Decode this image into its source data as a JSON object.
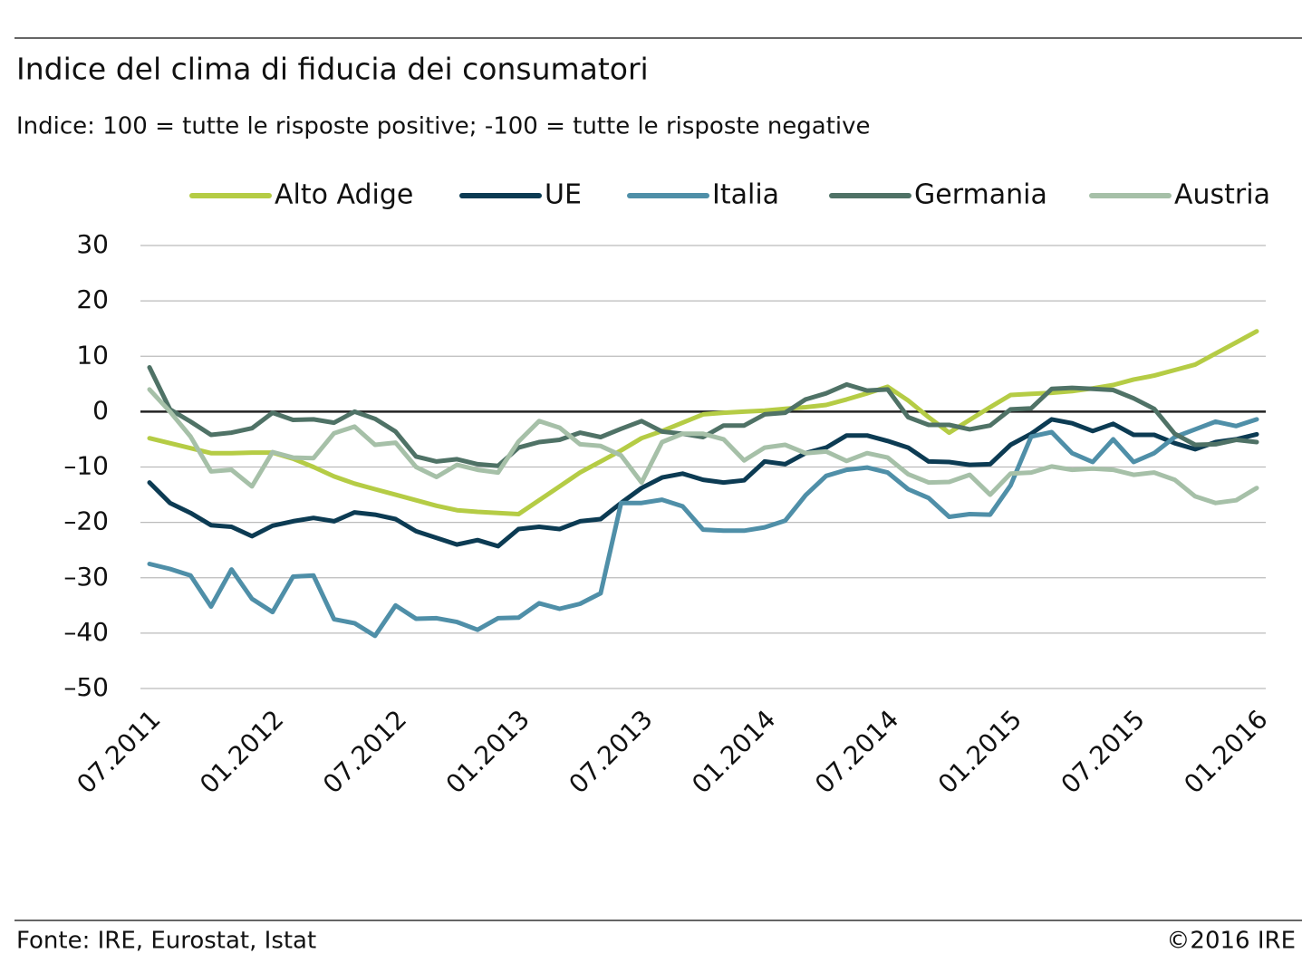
{
  "chart_data": {
    "type": "line",
    "title": "Indice del clima di fiducia dei consumatori",
    "subtitle": "Indice: 100 = tutte le risposte positive; -100 =  tutte le risposte negative",
    "source": "Fonte:  IRE, Eurostat, Istat",
    "copyright": "©2016 IRE",
    "categories": [
      "07.2011",
      null,
      null,
      null,
      null,
      null,
      "01.2012",
      null,
      null,
      null,
      null,
      null,
      "07.2012",
      null,
      null,
      null,
      null,
      null,
      "01.2013",
      null,
      null,
      null,
      null,
      null,
      "07.2013",
      null,
      null,
      null,
      null,
      null,
      "01.2014",
      null,
      null,
      null,
      null,
      null,
      "07.2014",
      null,
      null,
      null,
      null,
      null,
      "01.2015",
      null,
      null,
      null,
      null,
      null,
      "07.2015",
      null,
      null,
      null,
      null,
      null,
      "01.2016"
    ],
    "ylim": [
      -50,
      30
    ],
    "yticks": [
      {
        "value": -50,
        "label": "–50"
      },
      {
        "value": -40,
        "label": "–40"
      },
      {
        "value": -30,
        "label": "–30"
      },
      {
        "value": -20,
        "label": "–20"
      },
      {
        "value": -10,
        "label": "–10"
      },
      0,
      10,
      20,
      30
    ],
    "grid": true,
    "legend": "top",
    "series": [
      {
        "name": "Alto Adige",
        "color": "#b5cc45",
        "values": [
          -4.8,
          -5.7,
          -6.6,
          -7.5,
          -7.5,
          -7.4,
          -7.4,
          -8.5,
          -10,
          -11.7,
          -13,
          -14,
          -15,
          -16,
          -17,
          -17.8,
          -18.1,
          -18.3,
          -18.5,
          -16,
          -13.5,
          -11,
          -9,
          -7,
          -4.8,
          -3.5,
          -2,
          -0.5,
          -0.2,
          0,
          0.2,
          0.5,
          0.8,
          1.2,
          2.2,
          3.3,
          4.5,
          2,
          -1,
          -3.8,
          -1.5,
          0.8,
          3,
          3.2,
          3.4,
          3.7,
          4.2,
          4.8,
          5.8,
          6.5,
          7.5,
          8.5,
          10.5,
          12.5,
          14.5
        ]
      },
      {
        "name": "UE",
        "color": "#0c3b53",
        "values": [
          -12.8,
          -16.5,
          -18.3,
          -20.5,
          -20.8,
          -22.5,
          -20.6,
          -19.8,
          -19.2,
          -19.8,
          -18.2,
          -18.6,
          -19.4,
          -21.6,
          -22.8,
          -24,
          -23.2,
          -24.3,
          -21.2,
          -20.8,
          -21.2,
          -19.8,
          -19.4,
          -16.5,
          -13.8,
          -11.9,
          -11.2,
          -12.3,
          -12.8,
          -12.4,
          -9,
          -9.5,
          -7.5,
          -6.5,
          -4.3,
          -4.3,
          -5.3,
          -6.5,
          -9,
          -9.1,
          -9.6,
          -9.5,
          -6,
          -4,
          -1.4,
          -2.1,
          -3.5,
          -2.2,
          -4.2,
          -4.2,
          -5.7,
          -6.8,
          -5.5,
          -5,
          -4.1
        ]
      },
      {
        "name": "Italia",
        "color": "#4f8fa8",
        "values": [
          -27.5,
          -28.4,
          -29.6,
          -35.2,
          -28.5,
          -33.8,
          -36.2,
          -29.8,
          -29.6,
          -37.5,
          -38.2,
          -40.5,
          -35,
          -37.4,
          -37.3,
          -38,
          -39.4,
          -37.3,
          -37.2,
          -34.6,
          -35.6,
          -34.7,
          -32.8,
          -16.5,
          -16.5,
          -15.9,
          -17.1,
          -21.3,
          -21.5,
          -21.5,
          -20.9,
          -19.7,
          -15.1,
          -11.6,
          -10.5,
          -10.1,
          -11,
          -14,
          -15.6,
          -19,
          -18.5,
          -18.6,
          -13.3,
          -4.5,
          -3.7,
          -7.5,
          -9.1,
          -5,
          -9.1,
          -7.5,
          -4.6,
          -3.2,
          -1.8,
          -2.6,
          -1.4
        ]
      },
      {
        "name": "Germania",
        "color": "#4f7266",
        "values": [
          8,
          0.4,
          -1.8,
          -4.2,
          -3.8,
          -3,
          -0.2,
          -1.5,
          -1.4,
          -2,
          0,
          -1.3,
          -3.6,
          -8.1,
          -9,
          -8.6,
          -9.5,
          -9.8,
          -6.5,
          -5.5,
          -5.1,
          -3.8,
          -4.6,
          -3.1,
          -1.7,
          -3.6,
          -4,
          -4.6,
          -2.5,
          -2.5,
          -0.5,
          -0.2,
          2.2,
          3.3,
          4.9,
          3.8,
          4,
          -1,
          -2.4,
          -2.4,
          -3.2,
          -2.5,
          0.4,
          0.6,
          4.1,
          4.3,
          4.1,
          3.9,
          2.4,
          0.5,
          -4,
          -6,
          -5.9,
          -5.1,
          -5.5
        ]
      },
      {
        "name": "Austria",
        "color": "#a6c0a8",
        "values": [
          4,
          0,
          -4.5,
          -10.8,
          -10.5,
          -13.5,
          -7.3,
          -8.3,
          -8.4,
          -3.9,
          -2.7,
          -6,
          -5.6,
          -10,
          -11.8,
          -9.6,
          -10.5,
          -11,
          -5.4,
          -1.7,
          -2.9,
          -5.9,
          -6.2,
          -7.9,
          -12.8,
          -5.5,
          -4,
          -4,
          -5,
          -8.8,
          -6.5,
          -6,
          -7.5,
          -7.2,
          -8.9,
          -7.5,
          -8.3,
          -11.3,
          -12.8,
          -12.7,
          -11.4,
          -15,
          -11.2,
          -11,
          -9.9,
          -10.5,
          -10.3,
          -10.5,
          -11.4,
          -11,
          -12.3,
          -15.3,
          -16.5,
          -16,
          -13.8
        ]
      }
    ]
  }
}
